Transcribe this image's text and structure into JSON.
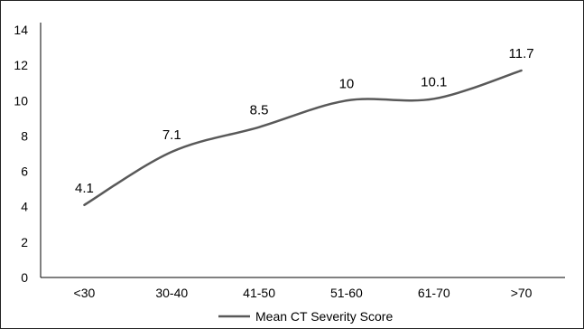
{
  "chart_data": {
    "type": "line",
    "categories": [
      "<30",
      "30-40",
      "41-50",
      "51-60",
      "61-70",
      ">70"
    ],
    "series": [
      {
        "name": "Mean CT Severity Score",
        "values": [
          4.1,
          7.1,
          8.5,
          10,
          10.1,
          11.7
        ],
        "color": "#595959"
      }
    ],
    "data_labels": [
      "4.1",
      "7.1",
      "8.5",
      "10",
      "10.1",
      "11.7"
    ],
    "ylim": [
      0,
      14
    ],
    "yticks": [
      "0",
      "2",
      "4",
      "6",
      "8",
      "10",
      "12",
      "14"
    ],
    "grid": false,
    "smooth": true,
    "legend_position": "bottom",
    "title": "",
    "xlabel": "",
    "ylabel": ""
  }
}
